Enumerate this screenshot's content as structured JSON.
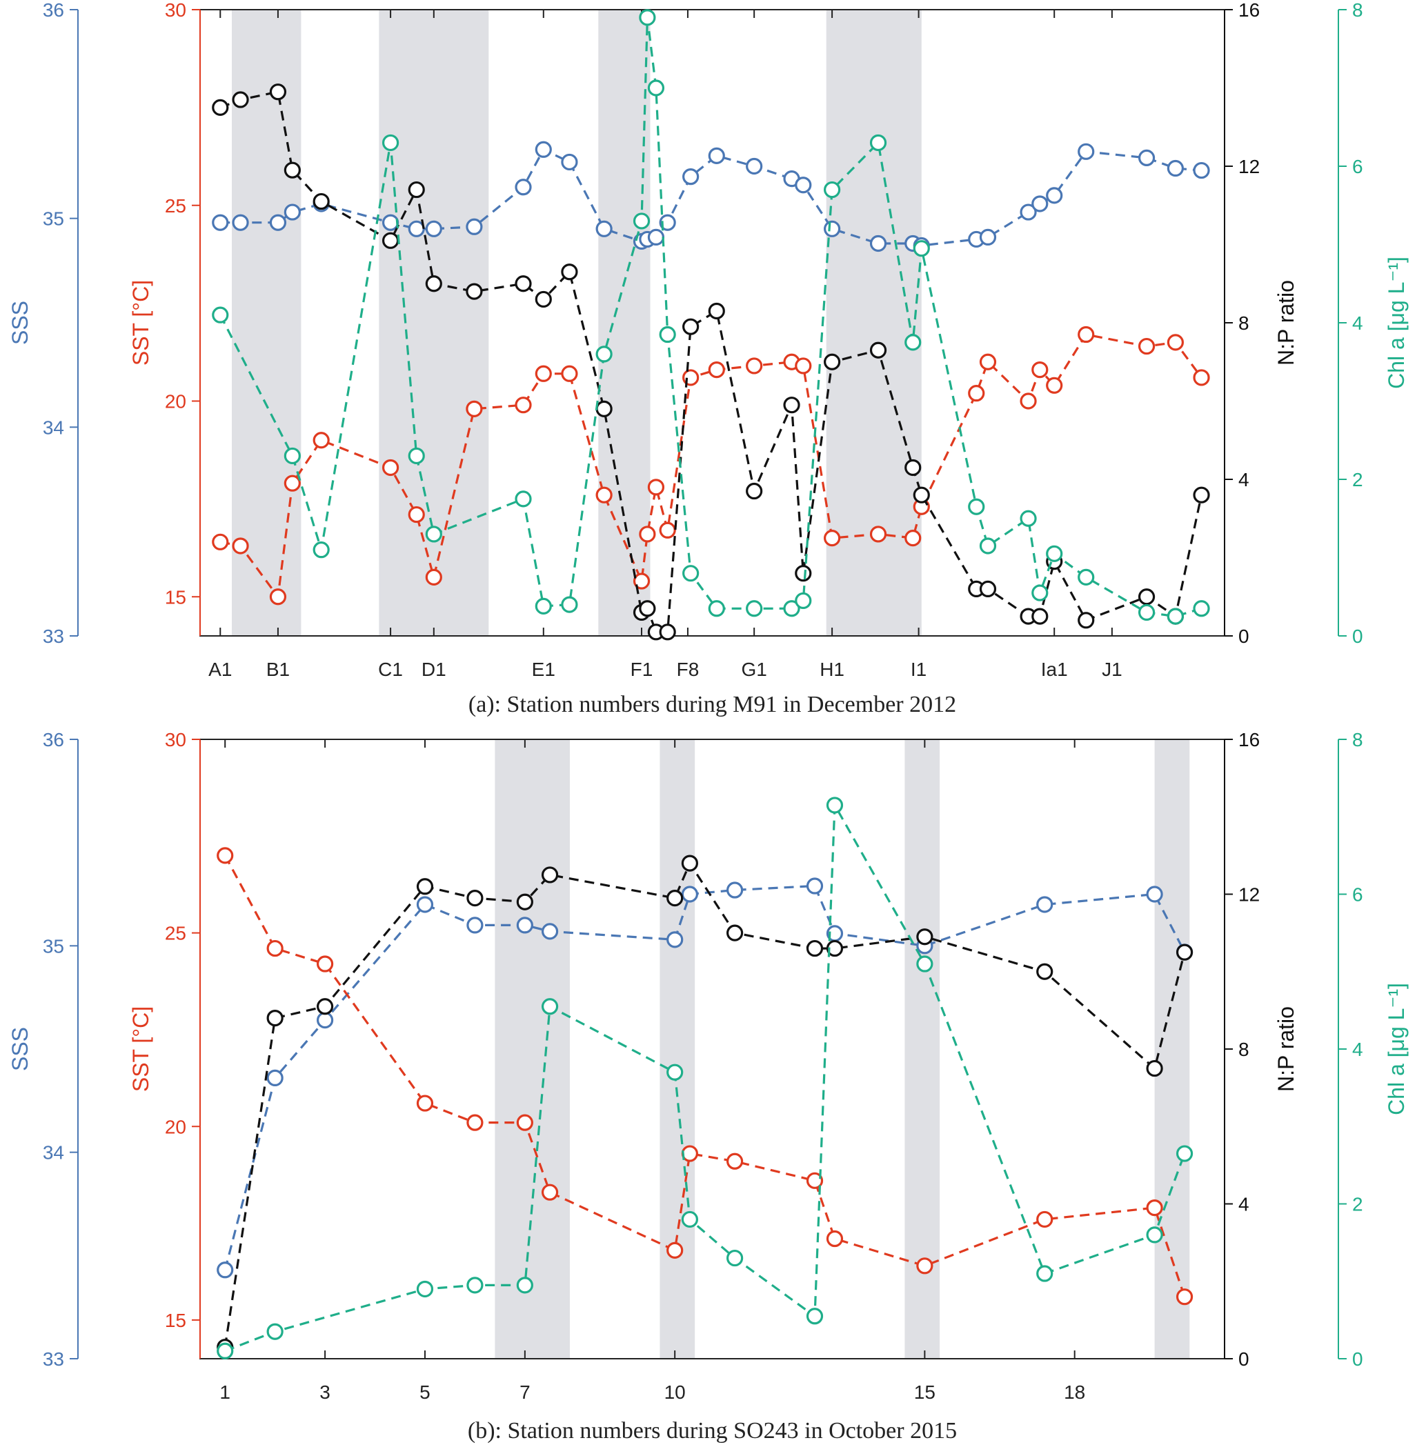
{
  "colors": {
    "sss": "#4a77b4",
    "sst": "#e03a1f",
    "np": "#111111",
    "chl": "#1fae8a",
    "shade": "#dfe0e4"
  },
  "chart_data": [
    {
      "type": "line",
      "caption": "(a): Station numbers during M91 in December 2012",
      "x_ticks": [
        {
          "x": 1,
          "label": "A1"
        },
        {
          "x": 3,
          "label": "B1"
        },
        {
          "x": 6.9,
          "label": "C1"
        },
        {
          "x": 8.4,
          "label": "D1"
        },
        {
          "x": 12.2,
          "label": "E1"
        },
        {
          "x": 15.6,
          "label": "F1"
        },
        {
          "x": 17.2,
          "label": "F8"
        },
        {
          "x": 19.5,
          "label": "G1"
        },
        {
          "x": 22.2,
          "label": "H1"
        },
        {
          "x": 25.2,
          "label": "I1"
        },
        {
          "x": 29.9,
          "label": "Ia1"
        },
        {
          "x": 31.9,
          "label": "J1"
        }
      ],
      "shaded": [
        [
          1.4,
          3.8
        ],
        [
          6.5,
          10.3
        ],
        [
          14.1,
          15.9
        ],
        [
          22.0,
          25.3
        ]
      ],
      "axes": {
        "sss": {
          "label": "SSS",
          "ylim": [
            33,
            36
          ],
          "ticks": [
            33,
            34,
            35,
            36
          ]
        },
        "sst": {
          "label": "SST [°C]",
          "ylim": [
            14,
            30
          ],
          "ticks": [
            15,
            20,
            25,
            30
          ]
        },
        "np": {
          "label": "N:P ratio",
          "ylim": [
            0,
            16
          ],
          "ticks": [
            0,
            4,
            8,
            12,
            16
          ]
        },
        "chl": {
          "label": "Chl a [μg L⁻¹]",
          "ylim": [
            0,
            8
          ],
          "ticks": [
            0,
            2,
            4,
            6,
            8
          ]
        }
      },
      "series": [
        {
          "name": "SSS",
          "axis": "sss",
          "x": [
            1,
            1.7,
            3,
            3.5,
            4.5,
            6.9,
            7.8,
            8.4,
            9.8,
            11.5,
            12.2,
            13.1,
            14.3,
            15.6,
            15.8,
            16.1,
            16.5,
            17.3,
            18.2,
            19.5,
            20.8,
            21.2,
            22.2,
            23.8,
            25.0,
            25.3,
            27.2,
            27.6,
            29.0,
            29.4,
            29.9,
            31.0,
            33.1,
            34.1,
            35.0
          ],
          "values": [
            34.98,
            34.98,
            34.98,
            35.03,
            35.07,
            34.98,
            34.95,
            34.95,
            34.96,
            35.15,
            35.33,
            35.27,
            34.95,
            34.89,
            34.9,
            34.91,
            34.98,
            35.2,
            35.3,
            35.25,
            35.19,
            35.16,
            34.95,
            34.88,
            34.88,
            34.87,
            34.9,
            34.91,
            35.03,
            35.07,
            35.11,
            35.32,
            35.29,
            35.24,
            35.23
          ]
        },
        {
          "name": "SST",
          "axis": "sst",
          "x": [
            1,
            1.7,
            3,
            3.5,
            4.5,
            6.9,
            7.8,
            8.4,
            9.8,
            11.5,
            12.2,
            13.1,
            14.3,
            15.6,
            15.8,
            16.1,
            16.5,
            17.3,
            18.2,
            19.5,
            20.8,
            21.2,
            22.2,
            23.8,
            25.0,
            25.3,
            27.2,
            27.6,
            29.0,
            29.4,
            29.9,
            31.0,
            33.1,
            34.1,
            35.0
          ],
          "values": [
            16.4,
            16.3,
            15.0,
            17.9,
            19.0,
            18.3,
            17.1,
            15.5,
            19.8,
            19.9,
            20.7,
            20.7,
            17.6,
            15.4,
            16.6,
            17.8,
            16.7,
            20.6,
            20.8,
            20.9,
            21.0,
            20.9,
            16.5,
            16.6,
            16.5,
            17.3,
            20.2,
            21.0,
            20.0,
            20.8,
            20.4,
            21.7,
            21.4,
            21.5,
            20.6
          ]
        },
        {
          "name": "N:P ratio",
          "axis": "np",
          "x": [
            1,
            1.7,
            3,
            3.5,
            4.5,
            6.9,
            7.8,
            8.4,
            9.8,
            11.5,
            12.2,
            13.1,
            14.3,
            15.6,
            15.8,
            16.1,
            16.5,
            17.3,
            18.2,
            19.5,
            20.8,
            21.2,
            22.2,
            23.8,
            25.0,
            25.3,
            27.2,
            27.6,
            29.0,
            29.4,
            29.9,
            31.0,
            33.1,
            34.1,
            35.0
          ],
          "values": [
            13.5,
            13.7,
            13.9,
            11.9,
            11.1,
            10.1,
            11.4,
            9.0,
            8.8,
            9.0,
            8.6,
            9.3,
            5.8,
            0.6,
            0.7,
            0.1,
            0.1,
            7.9,
            8.3,
            3.7,
            5.9,
            1.6,
            7.0,
            7.3,
            4.3,
            3.6,
            1.2,
            1.2,
            0.5,
            0.5,
            1.9,
            0.4,
            1.0,
            0.5,
            3.6
          ]
        },
        {
          "name": "Chl a",
          "axis": "chl",
          "x": [
            1,
            3.5,
            4.5,
            6.9,
            7.8,
            8.4,
            11.5,
            12.2,
            13.1,
            14.3,
            15.6,
            15.8,
            16.1,
            16.5,
            17.3,
            18.2,
            19.5,
            20.8,
            21.2,
            22.2,
            23.8,
            25.0,
            25.3,
            27.2,
            27.6,
            29.0,
            29.4,
            29.9,
            31.0,
            33.1,
            34.1,
            35.0
          ],
          "values": [
            4.1,
            2.3,
            1.1,
            6.3,
            2.3,
            1.3,
            1.75,
            0.38,
            0.4,
            3.6,
            5.3,
            7.9,
            7.0,
            3.85,
            0.8,
            0.35,
            0.35,
            0.35,
            0.45,
            5.7,
            6.3,
            3.75,
            4.95,
            1.65,
            1.15,
            1.5,
            0.55,
            1.05,
            0.75,
            0.3,
            0.25,
            0.35
          ]
        }
      ]
    },
    {
      "type": "line",
      "caption": "(b): Station numbers during SO243 in October 2015",
      "x_ticks": [
        {
          "x": 1,
          "label": "1"
        },
        {
          "x": 3,
          "label": "3"
        },
        {
          "x": 5,
          "label": "5"
        },
        {
          "x": 7,
          "label": "7"
        },
        {
          "x": 10,
          "label": "10"
        },
        {
          "x": 15,
          "label": "15"
        },
        {
          "x": 18,
          "label": "18"
        }
      ],
      "shaded": [
        [
          6.4,
          7.9
        ],
        [
          9.7,
          10.4
        ],
        [
          14.6,
          15.3
        ],
        [
          19.6,
          20.3
        ]
      ],
      "axes": {
        "sss": {
          "label": "SSS",
          "ylim": [
            33,
            36
          ],
          "ticks": [
            33,
            34,
            35,
            36
          ]
        },
        "sst": {
          "label": "SST [°C]",
          "ylim": [
            14,
            30
          ],
          "ticks": [
            15,
            20,
            25,
            30
          ]
        },
        "np": {
          "label": "N:P ratio",
          "ylim": [
            0,
            16
          ],
          "ticks": [
            0,
            4,
            8,
            12,
            16
          ]
        },
        "chl": {
          "label": "Chl a [μg L⁻¹]",
          "ylim": [
            0,
            8
          ],
          "ticks": [
            0,
            2,
            4,
            6,
            8
          ]
        }
      },
      "series": [
        {
          "name": "SSS",
          "axis": "sss",
          "x": [
            1,
            2.0,
            3,
            5,
            6.0,
            7.0,
            7.5,
            10,
            10.3,
            11.2,
            12.8,
            13.2,
            15,
            17.4,
            19.6,
            20.2
          ],
          "values": [
            33.43,
            34.36,
            34.64,
            35.2,
            35.1,
            35.1,
            35.07,
            35.03,
            35.25,
            35.27,
            35.29,
            35.06,
            35.0,
            35.2,
            35.25,
            34.97
          ]
        },
        {
          "name": "SST",
          "axis": "sst",
          "x": [
            1,
            2.0,
            3,
            5,
            6.0,
            7.0,
            7.5,
            10,
            10.3,
            11.2,
            12.8,
            13.2,
            15,
            17.4,
            19.6,
            20.2
          ],
          "values": [
            27.0,
            24.6,
            24.2,
            20.6,
            20.1,
            20.1,
            18.3,
            16.8,
            19.3,
            19.1,
            18.6,
            17.1,
            16.4,
            17.6,
            17.9,
            15.6
          ]
        },
        {
          "name": "N:P ratio",
          "axis": "np",
          "x": [
            1,
            2.0,
            3,
            5,
            6.0,
            7.0,
            7.5,
            10,
            10.3,
            11.2,
            12.8,
            13.2,
            15,
            17.4,
            19.6,
            20.2
          ],
          "values": [
            0.3,
            8.8,
            9.1,
            12.2,
            11.9,
            11.8,
            12.5,
            11.9,
            12.8,
            11.0,
            10.6,
            10.6,
            10.9,
            10.0,
            7.5,
            10.5
          ]
        },
        {
          "name": "Chl a",
          "axis": "chl",
          "x": [
            1,
            2.0,
            5,
            6.0,
            7.0,
            7.5,
            10,
            10.3,
            11.2,
            12.8,
            13.2,
            15,
            17.4,
            19.6,
            20.2
          ],
          "values": [
            0.1,
            0.35,
            0.9,
            0.95,
            0.95,
            4.55,
            3.7,
            1.8,
            1.3,
            0.55,
            7.15,
            5.1,
            1.1,
            1.6,
            2.65
          ]
        }
      ]
    }
  ]
}
